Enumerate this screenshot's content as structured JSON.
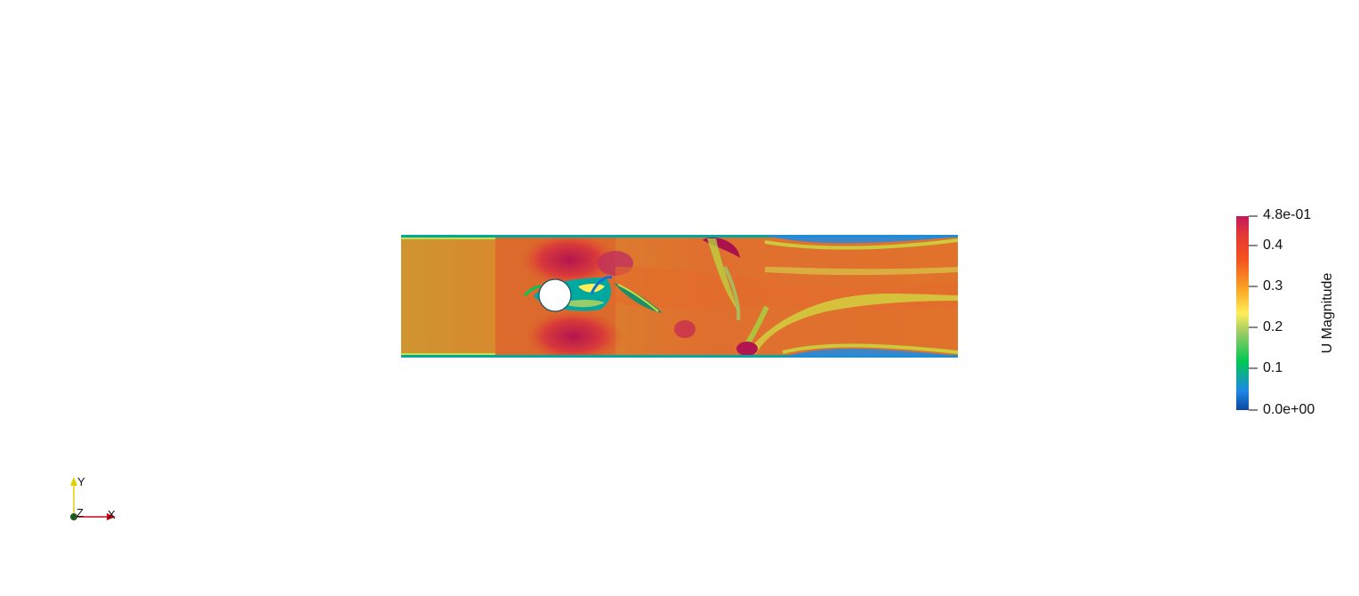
{
  "colorbar": {
    "title": "U Magnitude",
    "range": [
      0.0,
      0.48
    ],
    "labels": [
      "4.8e-01",
      "0.4",
      "0.3",
      "0.2",
      "0.1",
      "0.0e+00"
    ],
    "colors": [
      "#c2185b",
      "#e53935",
      "#f4511e",
      "#f9a825",
      "#ffee58",
      "#9ccc65",
      "#00c853",
      "#00a9a0",
      "#1e88e5",
      "#0d47a1"
    ]
  },
  "orientation_axes": {
    "x_label": "X",
    "y_label": "Y",
    "z_label": "Z",
    "x_color": "#d0021b",
    "y_color": "#e0d000",
    "z_color": "#1b5e20"
  },
  "field_colors": {
    "freestream": "#cf9430",
    "high": "#c2185b",
    "medium_high": "#e0582a",
    "wall_low": "#00a9a0",
    "very_low": "#0d6fd8",
    "transition": "#c8e040"
  }
}
